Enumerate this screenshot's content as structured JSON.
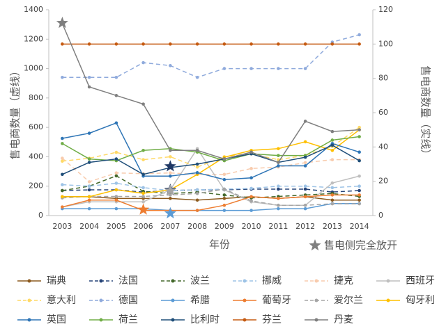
{
  "chart_data": {
    "type": "line",
    "x": [
      2003,
      2004,
      2005,
      2006,
      2007,
      2008,
      2009,
      2010,
      2011,
      2012,
      2013,
      2014
    ],
    "xlim": [
      2002.5,
      2014.5
    ],
    "x_label": "年份",
    "y_label": "售电商数量（虚线）",
    "y2_label": "售电商数量（实线）",
    "ylim": [
      0,
      1400
    ],
    "yticks": [
      0,
      200,
      400,
      600,
      800,
      1000,
      1200,
      1400
    ],
    "y2lim": [
      0,
      120
    ],
    "y2ticks": [
      0,
      20,
      40,
      60,
      80,
      100,
      120
    ],
    "series": [
      {
        "name": "瑞典",
        "color": "#8c5a1e",
        "axis": "y2",
        "values": [
          11,
          11,
          10,
          10,
          10,
          9,
          10,
          11,
          10,
          11,
          9,
          9
        ]
      },
      {
        "name": "法国",
        "color": "#264478",
        "values": [
          170,
          175,
          175,
          160,
          170,
          175,
          175,
          180,
          180,
          180,
          160,
          170
        ]
      },
      {
        "name": "波兰",
        "color": "#43682b",
        "values": [
          170,
          200,
          270,
          165,
          150,
          160,
          140,
          120,
          130,
          140,
          150,
          130
        ]
      },
      {
        "name": "挪威",
        "color": "#9dc3e6",
        "values": [
          210,
          200,
          220,
          190,
          170,
          175,
          180,
          185,
          200,
          200,
          190,
          200
        ]
      },
      {
        "name": "捷克",
        "color": "#f8cbad",
        "values": [
          390,
          230,
          290,
          285,
          290,
          280,
          280,
          320,
          330,
          360,
          380,
          380
        ]
      },
      {
        "name": "西班牙",
        "color": "#bfbfbf",
        "axis": "y2",
        "values": [
          5,
          8,
          8,
          8,
          15,
          39,
          15,
          8,
          6,
          6,
          19,
          23
        ]
      },
      {
        "name": "意大利",
        "color": "#ffd966",
        "values": [
          370,
          390,
          430,
          380,
          400,
          330,
          400,
          420,
          380,
          410,
          470,
          600
        ]
      },
      {
        "name": "德国",
        "color": "#8faadc",
        "values": [
          940,
          940,
          940,
          1040,
          1020,
          940,
          1000,
          1000,
          1000,
          1000,
          1180,
          1230
        ]
      },
      {
        "name": "希腊",
        "color": "#5b9bd5",
        "axis": "y2",
        "values": [
          4,
          4,
          4,
          4,
          3,
          3,
          3,
          3,
          4,
          4,
          7,
          7
        ]
      },
      {
        "name": "葡萄牙",
        "color": "#ed7d31",
        "axis": "y2",
        "values": [
          5,
          9,
          9,
          3,
          3,
          3,
          6,
          11,
          10,
          11,
          12,
          12
        ]
      },
      {
        "name": "爱尔兰",
        "color": "#a5a5a5",
        "values": [
          120,
          130,
          130,
          130,
          140,
          150,
          180,
          100,
          70,
          70,
          80,
          80
        ]
      },
      {
        "name": "匈牙利",
        "color": "#ffc000",
        "axis": "y2",
        "values": [
          11,
          11,
          15,
          13,
          15,
          24,
          34,
          38,
          39,
          43,
          38,
          50
        ]
      },
      {
        "name": "英国",
        "color": "#2e75b6",
        "axis": "y2",
        "values": [
          45,
          48,
          54,
          23,
          23,
          25,
          21,
          22,
          29,
          29,
          42,
          37
        ]
      },
      {
        "name": "荷兰",
        "color": "#70ad47",
        "axis": "y2",
        "values": [
          42,
          33,
          32,
          38,
          39,
          37,
          32,
          36,
          35,
          35,
          44,
          46
        ]
      },
      {
        "name": "比利时",
        "color": "#1f4e79",
        "axis": "y2",
        "values": [
          24,
          31,
          33,
          24,
          28,
          30,
          33,
          36,
          31,
          34,
          41,
          32
        ]
      },
      {
        "name": "芬兰",
        "color": "#c55a11",
        "axis": "y2",
        "values": [
          100,
          100,
          100,
          100,
          100,
          100,
          100,
          100,
          100,
          100,
          100,
          100
        ]
      },
      {
        "name": "丹麦",
        "color": "#7f7f7f",
        "axis": "y2",
        "values": [
          112,
          75,
          70,
          65,
          38,
          38,
          33,
          37,
          31,
          55,
          49,
          50
        ]
      }
    ],
    "highlight": {
      "name": "售电侧完全放开",
      "color": "#808080",
      "points": [
        {
          "x": 2003,
          "y": 1310,
          "color": "#7f7f7f"
        },
        {
          "x": 2006,
          "y": 40,
          "color": "#ed7d31"
        },
        {
          "x": 2007,
          "y": 335,
          "color": "#1f3864"
        },
        {
          "x": 2007,
          "y": 175,
          "color": "#1f3864"
        },
        {
          "x": 2007,
          "y": 170,
          "color": "#a5a5a5"
        },
        {
          "x": 2007,
          "y": 15,
          "color": "#5b9bd5"
        }
      ]
    }
  }
}
